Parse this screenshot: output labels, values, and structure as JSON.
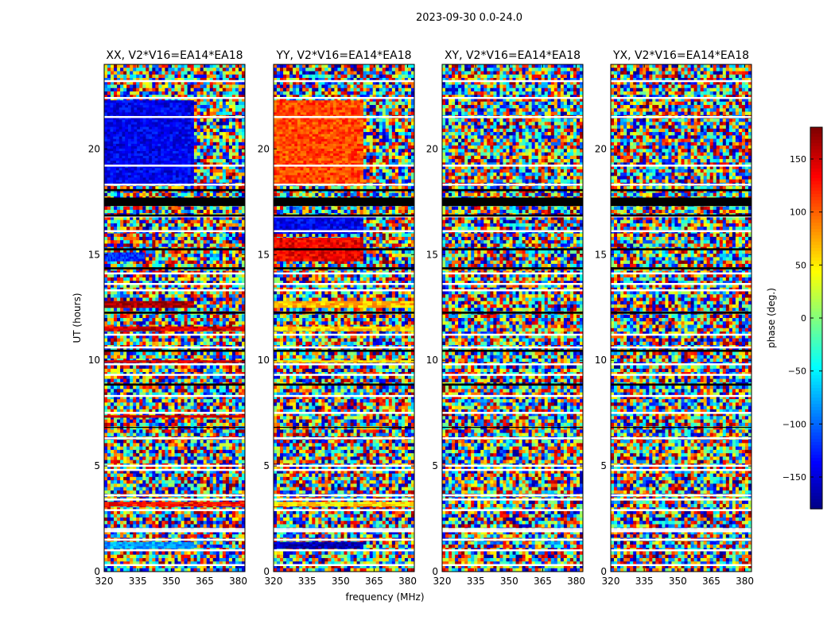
{
  "chart_data": {
    "type": "heatmap",
    "suptitle": "2023-09-30 0.0-24.0",
    "xlabel": "frequency (MHz)",
    "ylabel": "UT (hours)",
    "xlim": [
      320,
      383
    ],
    "ylim": [
      0,
      24
    ],
    "xticks": [
      320,
      335,
      350,
      365,
      380
    ],
    "yticks": [
      0,
      5,
      10,
      15,
      20
    ],
    "panels": [
      {
        "title": "XX, V2*V16=EA14*EA18",
        "coherent_bands": [
          {
            "ut_start": 18.3,
            "ut_end": 22.3,
            "freq_end": 360,
            "phase_deg": -140
          },
          {
            "ut_start": 14.7,
            "ut_end": 15.1,
            "freq_end": 338,
            "phase_deg": -120
          },
          {
            "ut_start": 12.5,
            "ut_end": 12.8,
            "freq_end": 360,
            "phase_deg": 170
          },
          {
            "ut_start": 11.4,
            "ut_end": 11.6,
            "freq_end": 383,
            "phase_deg": 150
          },
          {
            "ut_start": 9.9,
            "ut_end": 10.0,
            "freq_end": 383,
            "phase_deg": 150
          },
          {
            "ut_start": 7.3,
            "ut_end": 7.4,
            "freq_end": 383,
            "phase_deg": 150
          },
          {
            "ut_start": 3.1,
            "ut_end": 3.3,
            "freq_end": 383,
            "phase_deg": 130
          },
          {
            "ut_start": 1.1,
            "ut_end": 1.4,
            "freq_end": 360,
            "phase_deg": -80
          }
        ]
      },
      {
        "title": "YY, V2*V16=EA14*EA18",
        "coherent_bands": [
          {
            "ut_start": 18.3,
            "ut_end": 22.3,
            "freq_end": 360,
            "phase_deg": 110
          },
          {
            "ut_start": 16.0,
            "ut_end": 16.8,
            "freq_end": 360,
            "phase_deg": -140
          },
          {
            "ut_start": 14.7,
            "ut_end": 15.8,
            "freq_end": 360,
            "phase_deg": 140
          },
          {
            "ut_start": 12.5,
            "ut_end": 12.8,
            "freq_end": 383,
            "phase_deg": 70
          },
          {
            "ut_start": 11.4,
            "ut_end": 11.6,
            "freq_end": 383,
            "phase_deg": 60
          },
          {
            "ut_start": 9.9,
            "ut_end": 10.0,
            "freq_end": 383,
            "phase_deg": 60
          },
          {
            "ut_start": 3.1,
            "ut_end": 3.3,
            "freq_end": 383,
            "phase_deg": 55
          },
          {
            "ut_start": 1.1,
            "ut_end": 1.4,
            "freq_end": 360,
            "phase_deg": -165
          }
        ]
      },
      {
        "title": "XY, V2*V16=EA14*EA18",
        "coherent_bands": []
      },
      {
        "title": "YX, V2*V16=EA14*EA18",
        "coherent_bands": []
      }
    ],
    "flagged_white_ut": [
      23.2,
      22.4,
      21.5,
      19.2,
      18.3,
      16.8,
      16.1,
      14.1,
      13.6,
      13.3,
      11.2,
      10.6,
      9.8,
      9.3,
      8.3,
      7.5,
      6.3,
      5.0,
      4.8,
      3.6,
      3.4,
      2.9,
      2.0,
      1.9,
      1.5,
      1.0,
      0.3
    ],
    "flagged_black_ut": [
      [
        17.3,
        17.7
      ],
      [
        18.0,
        18.1
      ],
      [
        16.8,
        16.9
      ],
      [
        15.2,
        15.3
      ],
      [
        14.3,
        14.4
      ],
      [
        12.2,
        12.3
      ],
      [
        10.4,
        10.5
      ],
      [
        8.8,
        8.9
      ],
      [
        6.8,
        6.85
      ]
    ],
    "colorbar": {
      "label": "phase (deg.)",
      "range": [
        -180,
        180
      ],
      "ticks": [
        150,
        100,
        50,
        0,
        -50,
        -100,
        -150
      ],
      "tick_labels": [
        "150",
        "100",
        "50",
        "0",
        "−50",
        "−100",
        "−150"
      ],
      "colormap": "jet"
    }
  }
}
